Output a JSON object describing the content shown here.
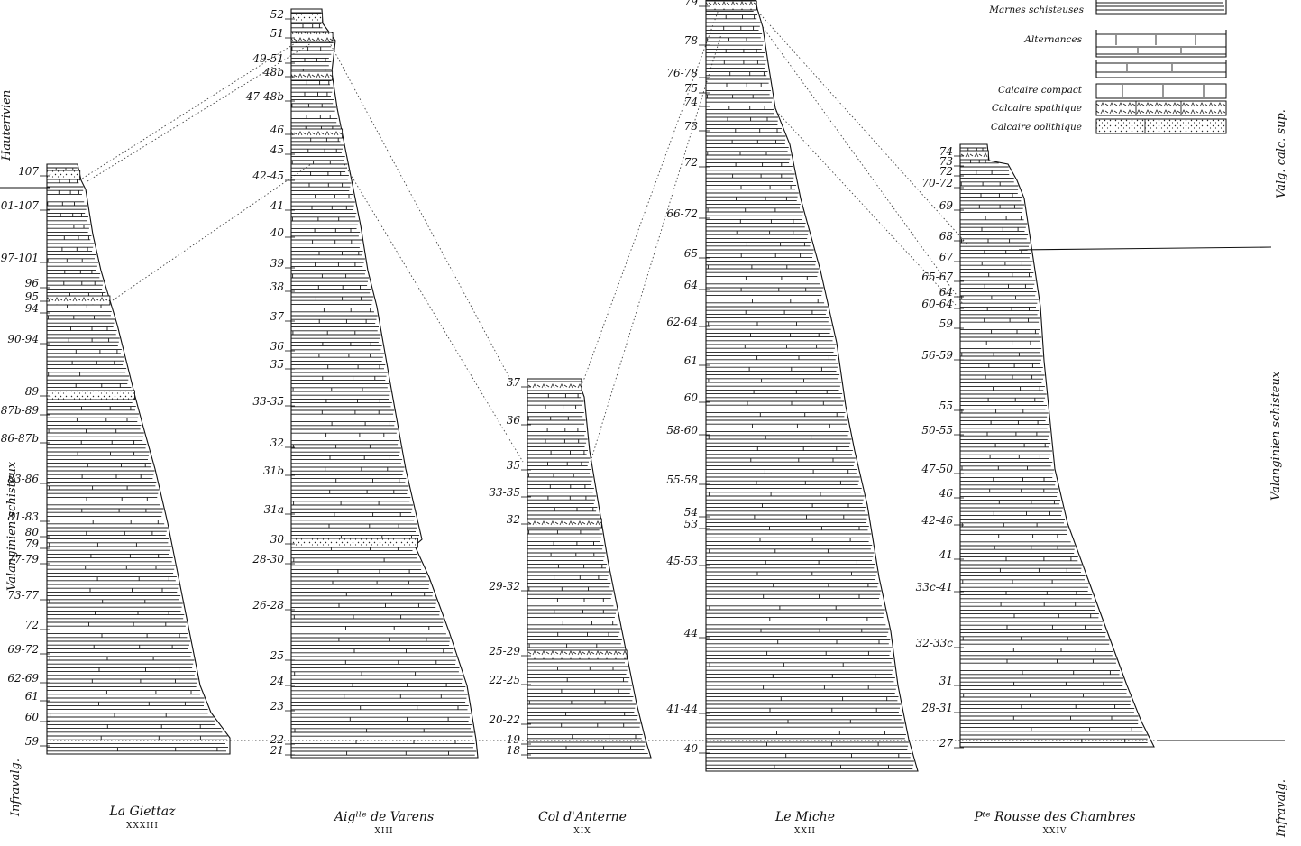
{
  "side_labels": {
    "left_top": "Hauterivien",
    "left_mid": "Valanginien schisteux",
    "left_bottom": "Infravalg.",
    "right_top": "Valg. calc. sup.",
    "right_mid": "Valanginien schisteux",
    "right_bottom": "Infravalg."
  },
  "legend": {
    "items": [
      {
        "label": "Marnes schisteuses",
        "pattern": "marl"
      },
      {
        "label": "Alternances",
        "pattern": "alternation"
      },
      {
        "label": "",
        "pattern": "alternation"
      },
      {
        "label": "Calcaire compact",
        "pattern": "compact"
      },
      {
        "label": "Calcaire spathique",
        "pattern": "spathic"
      },
      {
        "label": "Calcaire oolithique",
        "pattern": "oolitic"
      }
    ]
  },
  "columns": [
    {
      "name": "La Giettaz",
      "number": "XXXIII",
      "labels": [
        "107",
        "101-107",
        "97-101",
        "96",
        "95",
        "94",
        "90-94",
        "89",
        "87b-89",
        "86-87b",
        "83-86",
        "81-83",
        "80",
        "79",
        "77-79",
        "73-77",
        "72",
        "69-72",
        "62-69",
        "61",
        "60",
        "59"
      ],
      "special_beds": [
        {
          "bed": "95",
          "pattern": "spathic"
        },
        {
          "bed": "89",
          "pattern": "oolitic"
        },
        {
          "bed": "107",
          "pattern": "oolitic"
        }
      ]
    },
    {
      "name": "Aigˡˡᵉ de Varens",
      "number": "XIII",
      "labels": [
        "52",
        "51",
        "49-51",
        "48b",
        "47-48b",
        "46",
        "45",
        "42-45",
        "41",
        "40",
        "39",
        "38",
        "37",
        "36",
        "35",
        "33-35",
        "32",
        "31b",
        "31a",
        "30",
        "28-30",
        "26-28",
        "25",
        "24",
        "23",
        "22",
        "21"
      ],
      "special_beds": [
        {
          "bed": "52",
          "pattern": "oolitic"
        },
        {
          "bed": "51",
          "pattern": "spathic"
        },
        {
          "bed": "48b",
          "pattern": "spathic"
        },
        {
          "bed": "46",
          "pattern": "spathic"
        },
        {
          "bed": "30",
          "pattern": "oolitic"
        }
      ]
    },
    {
      "name": "Col d'Anterne",
      "number": "XIX",
      "labels": [
        "37",
        "36",
        "35",
        "33-35",
        "32",
        "29-32",
        "25-29",
        "22-25",
        "20-22",
        "19",
        "18"
      ],
      "special_beds": [
        {
          "bed": "37",
          "pattern": "spathic"
        },
        {
          "bed": "32",
          "pattern": "spathic"
        },
        {
          "bed": "25-29",
          "pattern": "spathic"
        }
      ]
    },
    {
      "name": "Le Miche",
      "number": "XXII",
      "labels": [
        "79",
        "78",
        "76-78",
        "75",
        "74",
        "73",
        "72",
        "66-72",
        "65",
        "64",
        "62-64",
        "61",
        "60",
        "58-60",
        "55-58",
        "54",
        "53",
        "45-53",
        "44",
        "41-44",
        "40"
      ],
      "special_beds": [
        {
          "bed": "79",
          "pattern": "spathic"
        }
      ]
    },
    {
      "name": "Pᵗᵉ Rousse des Chambres",
      "number": "XXIV",
      "labels": [
        "74",
        "73",
        "72",
        "70-72",
        "69",
        "68",
        "67",
        "65-67",
        "64",
        "60-64",
        "59",
        "56-59",
        "55",
        "50-55",
        "47-50",
        "46",
        "42-46",
        "41",
        "33c-41",
        "32-33c",
        "31",
        "28-31",
        "27"
      ],
      "special_beds": [
        {
          "bed": "74",
          "pattern": "spathic"
        }
      ]
    }
  ]
}
